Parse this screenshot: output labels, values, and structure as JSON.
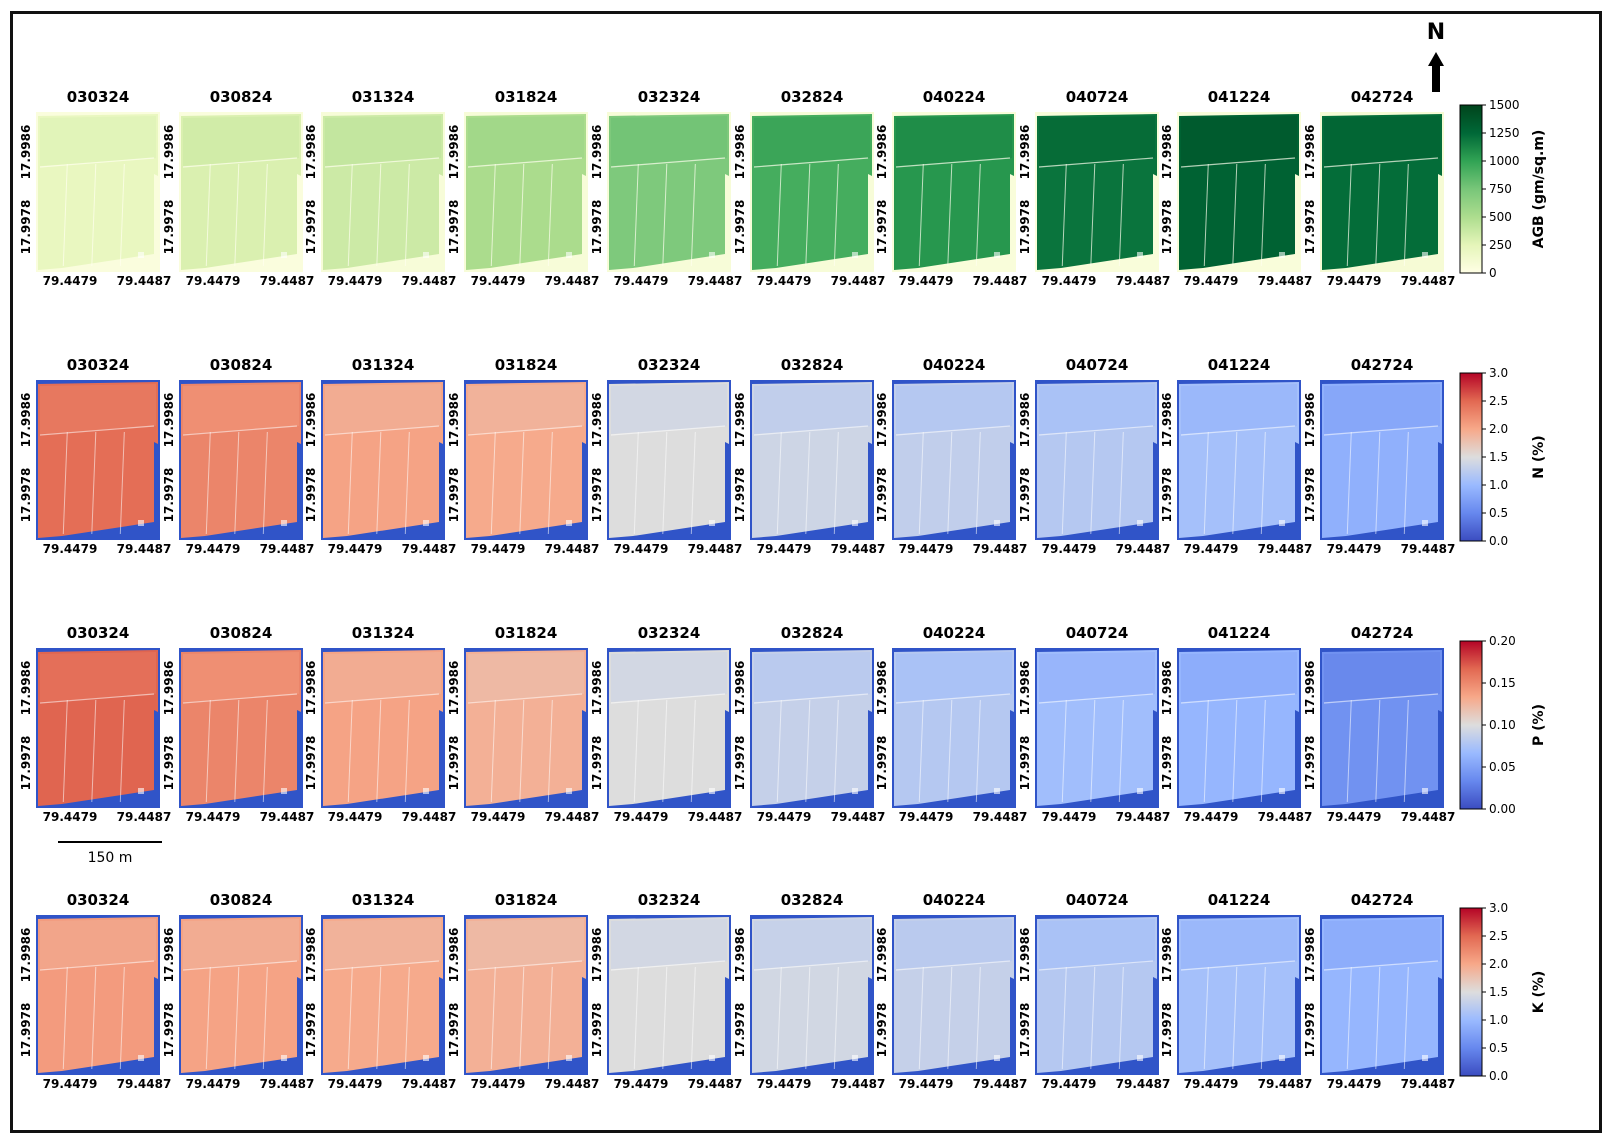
{
  "figure": {
    "north_label": "N",
    "scale_bar_label": "150 m",
    "dates": [
      "030324",
      "030824",
      "031324",
      "031824",
      "032324",
      "032824",
      "040224",
      "040724",
      "041224",
      "042724"
    ],
    "lat_ticks": [
      "17.9986",
      "17.9978"
    ],
    "lon_ticks": [
      "79.4479",
      "79.4487"
    ]
  },
  "rows": [
    {
      "id": "agb",
      "colorbar_label": "AGB (gm/sq.m)",
      "ticks": [
        "0",
        "250",
        "500",
        "750",
        "1000",
        "1250",
        "1500"
      ],
      "scheme": "greens",
      "field_levels": [
        0.14,
        0.2,
        0.24,
        0.34,
        0.48,
        0.62,
        0.7,
        0.8,
        0.86,
        0.82
      ],
      "background_levels": [
        0.03,
        0.03,
        0.05,
        0.05,
        0.05,
        0.05,
        0.04,
        0.04,
        0.04,
        0.06
      ]
    },
    {
      "id": "n",
      "colorbar_label": "N (%)",
      "ticks": [
        "0.0",
        "0.5",
        "1.0",
        "1.5",
        "2.0",
        "2.5",
        "3.0"
      ],
      "scheme": "coolwarm",
      "field_levels": [
        0.82,
        0.76,
        0.68,
        0.66,
        0.5,
        0.46,
        0.43,
        0.4,
        0.36,
        0.3
      ],
      "background_levels": [
        0.0,
        0.0,
        0.0,
        0.0,
        0.0,
        0.0,
        0.0,
        0.0,
        0.0,
        0.0
      ]
    },
    {
      "id": "p",
      "colorbar_label": "P (%)",
      "ticks": [
        "0.00",
        "0.05",
        "0.10",
        "0.15",
        "0.20"
      ],
      "scheme": "coolwarm",
      "field_levels": [
        0.84,
        0.76,
        0.68,
        0.64,
        0.5,
        0.44,
        0.4,
        0.35,
        0.32,
        0.2
      ],
      "background_levels": [
        0.0,
        0.0,
        0.0,
        0.0,
        0.0,
        0.0,
        0.0,
        0.0,
        0.0,
        0.0
      ]
    },
    {
      "id": "k",
      "colorbar_label": "K (%)",
      "ticks": [
        "0.0",
        "0.5",
        "1.0",
        "1.5",
        "2.0",
        "2.5",
        "3.0"
      ],
      "scheme": "coolwarm",
      "field_levels": [
        0.7,
        0.68,
        0.66,
        0.64,
        0.5,
        0.47,
        0.44,
        0.4,
        0.36,
        0.32
      ],
      "background_levels": [
        0.0,
        0.0,
        0.0,
        0.0,
        0.0,
        0.0,
        0.0,
        0.0,
        0.0,
        0.0
      ]
    }
  ]
}
